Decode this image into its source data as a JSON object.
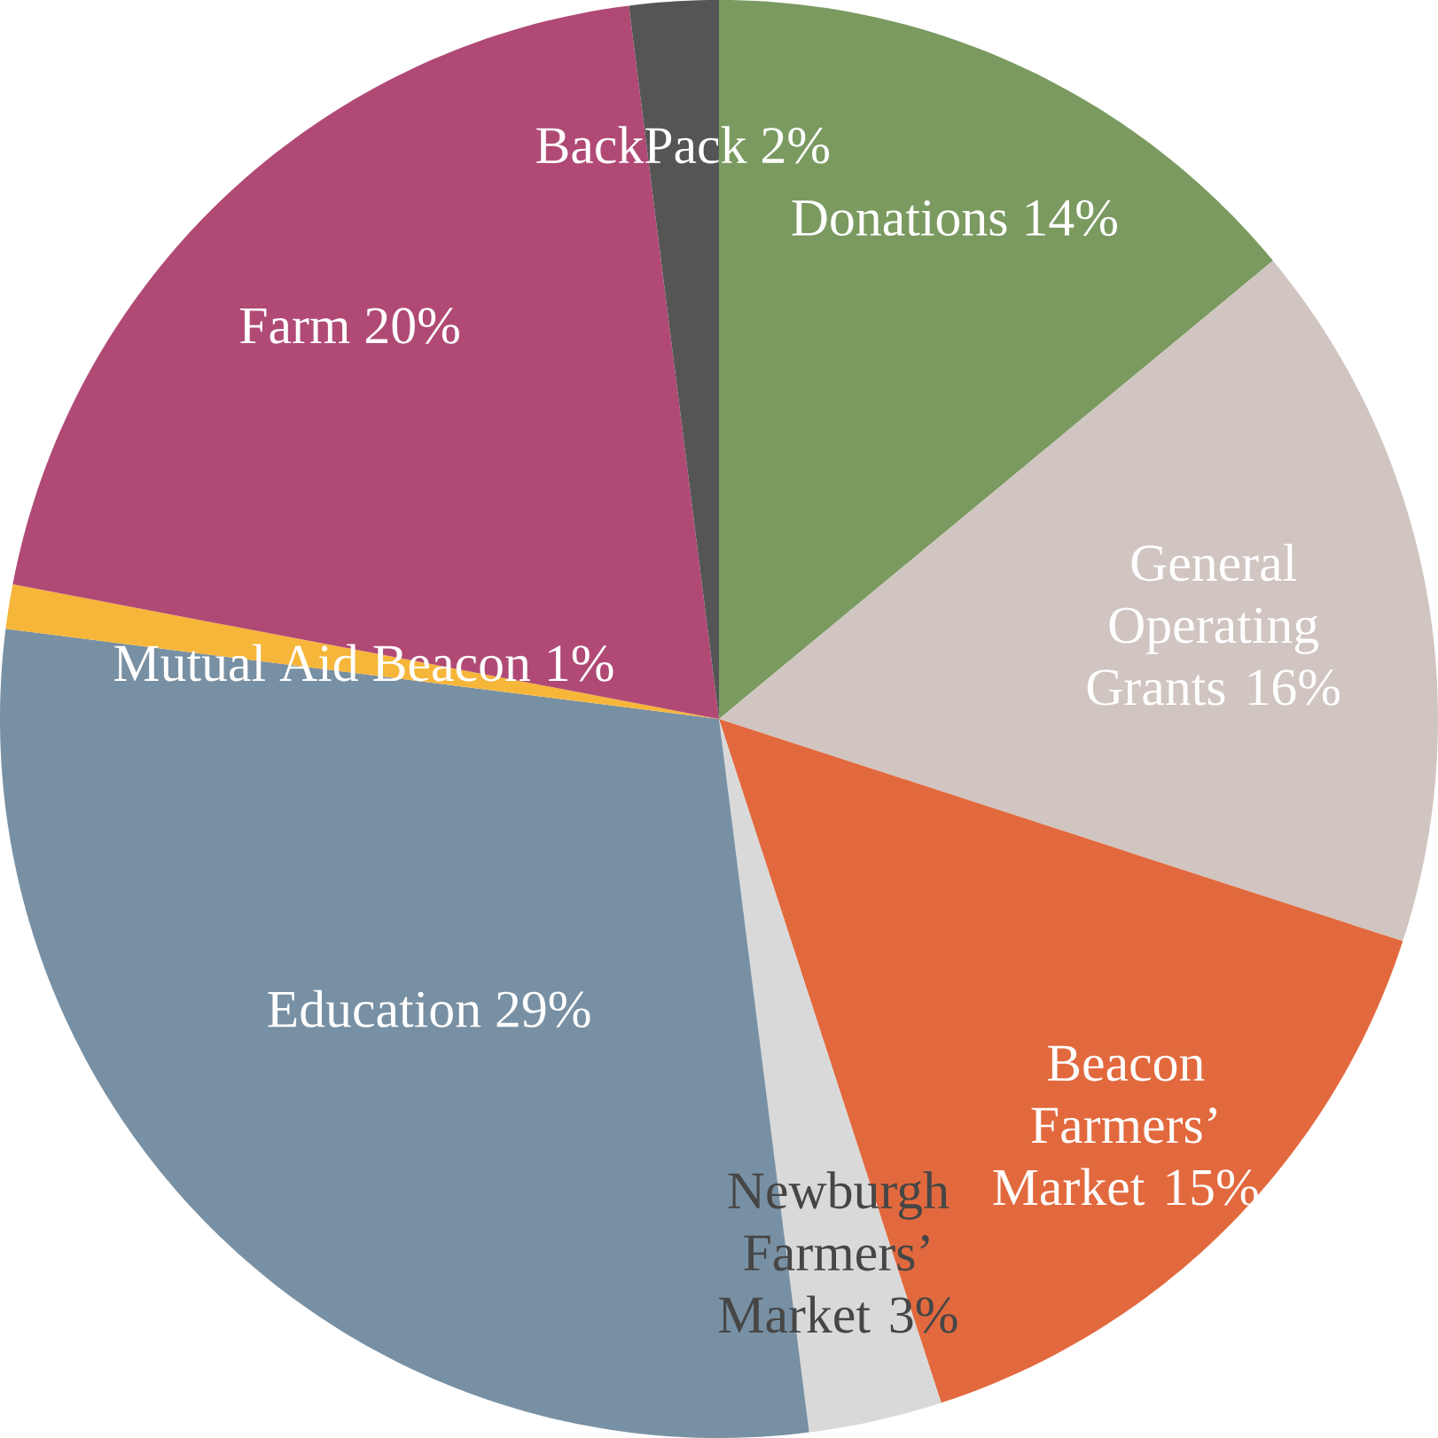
{
  "chart_data": {
    "type": "pie",
    "categories": [
      "Donations",
      "General Operating Grants",
      "Beacon Farmers’ Market",
      "Newburgh Farmers’ Market",
      "Education",
      "Mutual Aid Beacon",
      "Farm",
      "BackPack"
    ],
    "values": [
      14,
      16,
      15,
      3,
      29,
      1,
      20,
      2
    ],
    "value_labels": [
      "14%",
      "16%",
      "15%",
      "3%",
      "29%",
      "1%",
      "20%",
      "2%"
    ],
    "colors": [
      "#7a9a60",
      "#d0c5c0",
      "#e2693e",
      "#d9d9d9",
      "#7890a3",
      "#f6b63a",
      "#b04a75",
      "#555555"
    ]
  }
}
